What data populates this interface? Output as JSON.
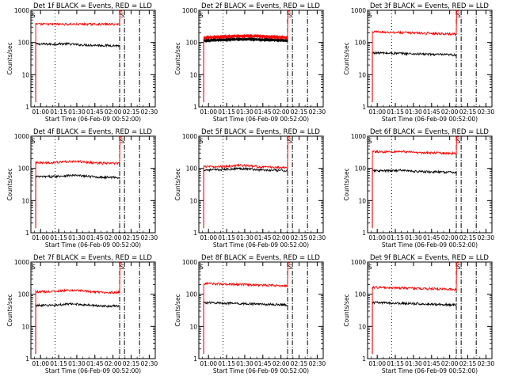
{
  "chart_data": [
    {
      "type": "line",
      "title": "Det 1f BLACK = Events, RED = LLD",
      "xlabel": "Start Time (06-Feb-09 00:52:00)",
      "ylabel": "Counts/sec",
      "yscale": "log",
      "ylim": [
        1,
        1000
      ],
      "yticks": [
        "1",
        "10",
        "100",
        "1000"
      ],
      "xticks": [
        "01:00",
        "01:15",
        "01:30",
        "01:45",
        "02:00",
        "02:15",
        "02:30"
      ],
      "xlim_minutes": [
        0,
        103
      ],
      "marker_label": "S",
      "markers_min": [
        20,
        73.5,
        77.5,
        90
      ],
      "series": [
        {
          "color": "#000000",
          "level": 90,
          "shape": "a",
          "start_min": 4,
          "end_min": 73.5
        },
        {
          "color": "#ff0000",
          "level": 370,
          "shape": "flat",
          "start_min": 4,
          "end_min": 73.5
        }
      ]
    },
    {
      "type": "line",
      "title": "Det 2f BLACK = Events, RED = LLD",
      "xlabel": "Start Time (06-Feb-09 00:52:00)",
      "ylabel": "Counts/sec",
      "yscale": "log",
      "ylim": [
        1,
        1000
      ],
      "yticks": [
        "1",
        "10",
        "100",
        "1000"
      ],
      "xticks": [
        "01:00",
        "01:15",
        "01:30",
        "01:45",
        "02:00",
        "02:15",
        "02:30"
      ],
      "xlim_minutes": [
        0,
        103
      ],
      "marker_label": "S",
      "markers_min": [
        20,
        73.5,
        77.5,
        90
      ],
      "series": [
        {
          "color": "#000000",
          "level": 112,
          "shape": "c",
          "start_min": 4,
          "end_min": 73.5
        },
        {
          "color": "#ff0000",
          "level": 140,
          "shape": "c",
          "start_min": 4,
          "end_min": 73.5
        }
      ]
    },
    {
      "type": "line",
      "title": "Det 3f BLACK = Events, RED = LLD",
      "xlabel": "Start Time (06-Feb-09 00:52:00)",
      "ylabel": "Counts/sec",
      "yscale": "log",
      "ylim": [
        1,
        1000
      ],
      "yticks": [
        "1",
        "10",
        "100",
        "1000"
      ],
      "xticks": [
        "01:00",
        "01:15",
        "01:30",
        "01:45",
        "02:00",
        "02:15",
        "02:30"
      ],
      "xlim_minutes": [
        0,
        103
      ],
      "marker_label": "S",
      "markers_min": [
        20,
        73.5,
        77.5,
        90
      ],
      "series": [
        {
          "color": "#000000",
          "level": 48,
          "shape": "d",
          "start_min": 4,
          "end_min": 73.5
        },
        {
          "color": "#ff0000",
          "level": 215,
          "shape": "d",
          "start_min": 4,
          "end_min": 73.5
        }
      ]
    },
    {
      "type": "line",
      "title": "Det 4f BLACK = Events, RED = LLD",
      "xlabel": "Start Time (06-Feb-09 00:52:00)",
      "ylabel": "Counts/sec",
      "yscale": "log",
      "ylim": [
        1,
        1000
      ],
      "yticks": [
        "1",
        "10",
        "100",
        "1000"
      ],
      "xticks": [
        "01:00",
        "01:15",
        "01:30",
        "01:45",
        "02:00",
        "02:15",
        "02:30"
      ],
      "xlim_minutes": [
        0,
        103
      ],
      "marker_label": "S",
      "markers_min": [
        20,
        73.5,
        77.5,
        90
      ],
      "series": [
        {
          "color": "#000000",
          "level": 55,
          "shape": "b",
          "start_min": 4,
          "end_min": 73.5
        },
        {
          "color": "#ff0000",
          "level": 150,
          "shape": "b",
          "start_min": 4,
          "end_min": 73.5
        }
      ]
    },
    {
      "type": "line",
      "title": "Det 5f BLACK = Events, RED = LLD",
      "xlabel": "Start Time (06-Feb-09 00:52:00)",
      "ylabel": "Counts/sec",
      "yscale": "log",
      "ylim": [
        1,
        1000
      ],
      "yticks": [
        "1",
        "10",
        "100",
        "1000"
      ],
      "xticks": [
        "01:00",
        "01:15",
        "01:30",
        "01:45",
        "02:00",
        "02:15",
        "02:30"
      ],
      "xlim_minutes": [
        0,
        103
      ],
      "marker_label": "S",
      "markers_min": [
        20,
        73.5,
        77.5,
        90
      ],
      "series": [
        {
          "color": "#000000",
          "level": 90,
          "shape": "b",
          "start_min": 4,
          "end_min": 73.5
        },
        {
          "color": "#ff0000",
          "level": 112,
          "shape": "b",
          "start_min": 4,
          "end_min": 73.5
        }
      ]
    },
    {
      "type": "line",
      "title": "Det 6f BLACK = Events, RED = LLD",
      "xlabel": "Start Time (06-Feb-09 00:52:00)",
      "ylabel": "Counts/sec",
      "yscale": "log",
      "ylim": [
        1,
        1000
      ],
      "yticks": [
        "1",
        "10",
        "100",
        "1000"
      ],
      "xticks": [
        "01:00",
        "01:15",
        "01:30",
        "01:45",
        "02:00",
        "02:15",
        "02:30"
      ],
      "xlim_minutes": [
        0,
        103
      ],
      "marker_label": "S",
      "markers_min": [
        20,
        73.5,
        77.5,
        90
      ],
      "series": [
        {
          "color": "#000000",
          "level": 85,
          "shape": "a",
          "start_min": 4,
          "end_min": 73.5
        },
        {
          "color": "#ff0000",
          "level": 330,
          "shape": "a",
          "start_min": 4,
          "end_min": 73.5
        }
      ]
    },
    {
      "type": "line",
      "title": "Det 7f BLACK = Events, RED = LLD",
      "xlabel": "Start Time (06-Feb-09 00:52:00)",
      "ylabel": "Counts/sec",
      "yscale": "log",
      "ylim": [
        1,
        1000
      ],
      "yticks": [
        "1",
        "10",
        "100",
        "1000"
      ],
      "xticks": [
        "01:00",
        "01:15",
        "01:30",
        "01:45",
        "02:00",
        "02:15",
        "02:30"
      ],
      "xlim_minutes": [
        0,
        103
      ],
      "marker_label": "S",
      "markers_min": [
        20,
        73.5,
        77.5,
        90
      ],
      "series": [
        {
          "color": "#000000",
          "level": 45,
          "shape": "b",
          "start_min": 4,
          "end_min": 73.5
        },
        {
          "color": "#ff0000",
          "level": 120,
          "shape": "b",
          "start_min": 4,
          "end_min": 73.5
        }
      ]
    },
    {
      "type": "line",
      "title": "Det 8f BLACK = Events, RED = LLD",
      "xlabel": "Start Time (06-Feb-09 00:52:00)",
      "ylabel": "Counts/sec",
      "yscale": "log",
      "ylim": [
        1,
        1000
      ],
      "yticks": [
        "1",
        "10",
        "100",
        "1000"
      ],
      "xticks": [
        "01:00",
        "01:15",
        "01:30",
        "01:45",
        "02:00",
        "02:15",
        "02:30"
      ],
      "xlim_minutes": [
        0,
        103
      ],
      "marker_label": "S",
      "markers_min": [
        20,
        73.5,
        77.5,
        90
      ],
      "series": [
        {
          "color": "#000000",
          "level": 55,
          "shape": "d",
          "start_min": 4,
          "end_min": 73.5
        },
        {
          "color": "#ff0000",
          "level": 215,
          "shape": "d",
          "start_min": 4,
          "end_min": 73.5
        }
      ]
    },
    {
      "type": "line",
      "title": "Det 9f BLACK = Events, RED = LLD",
      "xlabel": "Start Time (06-Feb-09 00:52:00)",
      "ylabel": "Counts/sec",
      "yscale": "log",
      "ylim": [
        1,
        1000
      ],
      "yticks": [
        "1",
        "10",
        "100",
        "1000"
      ],
      "xticks": [
        "01:00",
        "01:15",
        "01:30",
        "01:45",
        "02:00",
        "02:15",
        "02:30"
      ],
      "xlim_minutes": [
        0,
        103
      ],
      "marker_label": "S",
      "markers_min": [
        20,
        73.5,
        77.5,
        90
      ],
      "series": [
        {
          "color": "#000000",
          "level": 55,
          "shape": "d",
          "start_min": 4,
          "end_min": 73.5
        },
        {
          "color": "#ff0000",
          "level": 165,
          "shape": "d",
          "start_min": 4,
          "end_min": 73.5
        }
      ]
    }
  ]
}
